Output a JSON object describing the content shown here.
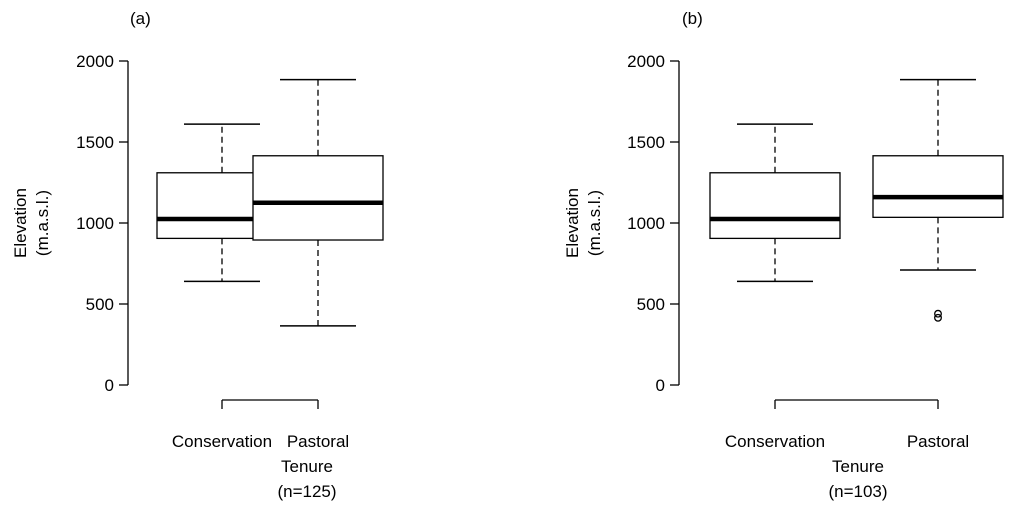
{
  "chart_data": [
    {
      "type": "box",
      "panel_label": "(a)",
      "xlabel": "Tenure",
      "xlabel_note": "(n=125)",
      "ylabel": "Elevation",
      "ylabel_units": "(m.a.s.l.)",
      "ylim": [
        0,
        2000
      ],
      "yticks": [
        0,
        500,
        1000,
        1500,
        2000
      ],
      "categories": [
        "Conservation",
        "Pastoral"
      ],
      "boxes": [
        {
          "whisker_low": 640,
          "q1": 905,
          "median": 1025,
          "q3": 1310,
          "whisker_high": 1610,
          "outliers": []
        },
        {
          "whisker_low": 365,
          "q1": 895,
          "median": 1125,
          "q3": 1415,
          "whisker_high": 1885,
          "outliers": []
        }
      ]
    },
    {
      "type": "box",
      "panel_label": "(b)",
      "xlabel": "Tenure",
      "xlabel_note": "(n=103)",
      "ylabel": "Elevation",
      "ylabel_units": "(m.a.s.l.)",
      "ylim": [
        0,
        2000
      ],
      "yticks": [
        0,
        500,
        1000,
        1500,
        2000
      ],
      "categories": [
        "Conservation",
        "Pastoral"
      ],
      "boxes": [
        {
          "whisker_low": 640,
          "q1": 905,
          "median": 1025,
          "q3": 1310,
          "whisker_high": 1610,
          "outliers": []
        },
        {
          "whisker_low": 710,
          "q1": 1035,
          "median": 1160,
          "q3": 1415,
          "whisker_high": 1885,
          "outliers": [
            440,
            415
          ]
        }
      ]
    }
  ]
}
